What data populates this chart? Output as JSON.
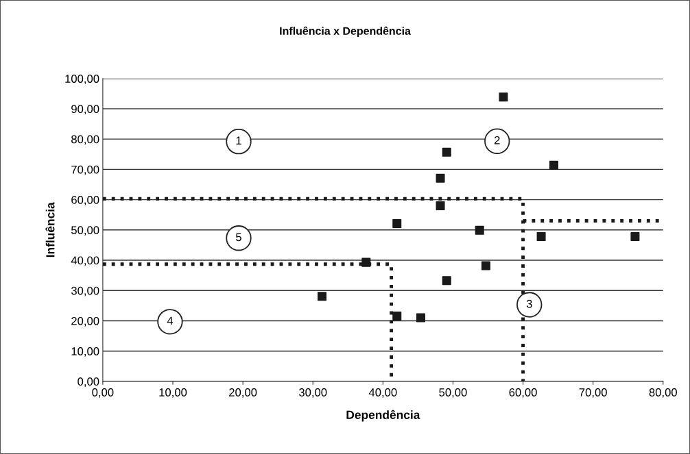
{
  "chart_data": {
    "type": "scatter",
    "title": "Influência x Dependência",
    "xlabel": "Dependência",
    "ylabel": "Influência",
    "xlim": [
      0,
      80
    ],
    "ylim": [
      0,
      100
    ],
    "xticks": [
      {
        "value": 0,
        "label": "0,00"
      },
      {
        "value": 10,
        "label": "10,00"
      },
      {
        "value": 20,
        "label": "20,00"
      },
      {
        "value": 30,
        "label": "30,00"
      },
      {
        "value": 40,
        "label": "40,00"
      },
      {
        "value": 50,
        "label": "50,00"
      },
      {
        "value": 60,
        "label": "60,00"
      },
      {
        "value": 70,
        "label": "70,00"
      },
      {
        "value": 80,
        "label": "80,00"
      }
    ],
    "yticks": [
      {
        "value": 0,
        "label": "0,00"
      },
      {
        "value": 10,
        "label": "10,00"
      },
      {
        "value": 20,
        "label": "20,00"
      },
      {
        "value": 30,
        "label": "30,00"
      },
      {
        "value": 40,
        "label": "40,00"
      },
      {
        "value": 50,
        "label": "50,00"
      },
      {
        "value": 60,
        "label": "60,00"
      },
      {
        "value": 70,
        "label": "70,00"
      },
      {
        "value": 80,
        "label": "80,00"
      },
      {
        "value": 90,
        "label": "90,00"
      },
      {
        "value": 100,
        "label": "100,00"
      }
    ],
    "grid": "y",
    "legend": false,
    "series": [
      {
        "color": "#1a1a1a",
        "marker": "square",
        "x": [
          57.2,
          49.1,
          64.4,
          48.2,
          48.2,
          42.0,
          53.8,
          62.6,
          76.0,
          37.6,
          54.7,
          49.1,
          31.3,
          42.0,
          45.4
        ],
        "values": [
          93.9,
          75.7,
          71.4,
          67.1,
          58.0,
          52.1,
          49.9,
          47.8,
          47.8,
          39.3,
          38.2,
          33.3,
          28.1,
          21.6,
          21.0
        ]
      },
      {
        "type": "line",
        "color": "#1a1a1a",
        "line_style": "dotted",
        "marker": "none",
        "x": [
          0,
          60,
          60
        ],
        "values": [
          60.3,
          60.3,
          0
        ]
      },
      {
        "type": "line",
        "color": "#1a1a1a",
        "line_style": "dotted",
        "marker": "none",
        "x": [
          60,
          80
        ],
        "values": [
          53.0,
          53.0
        ]
      },
      {
        "type": "line",
        "color": "#1a1a1a",
        "line_style": "dotted",
        "marker": "none",
        "x": [
          0,
          41.2,
          41.2
        ],
        "values": [
          38.7,
          38.7,
          0
        ]
      }
    ],
    "annotations": [
      {
        "text": "1",
        "x": 19.4,
        "y": 79.2
      },
      {
        "text": "2",
        "x": 56.3,
        "y": 79.3
      },
      {
        "text": "3",
        "x": 60.9,
        "y": 25.3
      },
      {
        "text": "4",
        "x": 9.6,
        "y": 19.7
      },
      {
        "text": "5",
        "x": 19.4,
        "y": 47.3
      }
    ]
  }
}
